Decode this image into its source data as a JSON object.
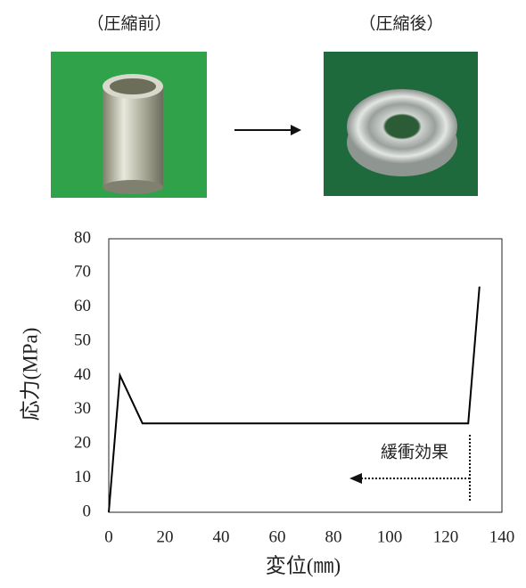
{
  "photos": {
    "before": "（圧縮前）",
    "after": "（圧縮後）"
  },
  "chart_data": {
    "type": "line",
    "xlabel": "変位(㎜)",
    "ylabel": "応力(MPa)",
    "x": [
      0,
      4,
      12,
      128,
      132
    ],
    "values": [
      0,
      40,
      26,
      26,
      66
    ],
    "color": "#000000",
    "xlim": [
      0,
      140
    ],
    "xticks": [
      0,
      20,
      40,
      60,
      80,
      100,
      120,
      140
    ],
    "ylim": [
      0,
      80
    ],
    "yticks": [
      0,
      10,
      20,
      30,
      40,
      50,
      60,
      70,
      80
    ],
    "grid": false,
    "annotation": "緩衝効果"
  }
}
